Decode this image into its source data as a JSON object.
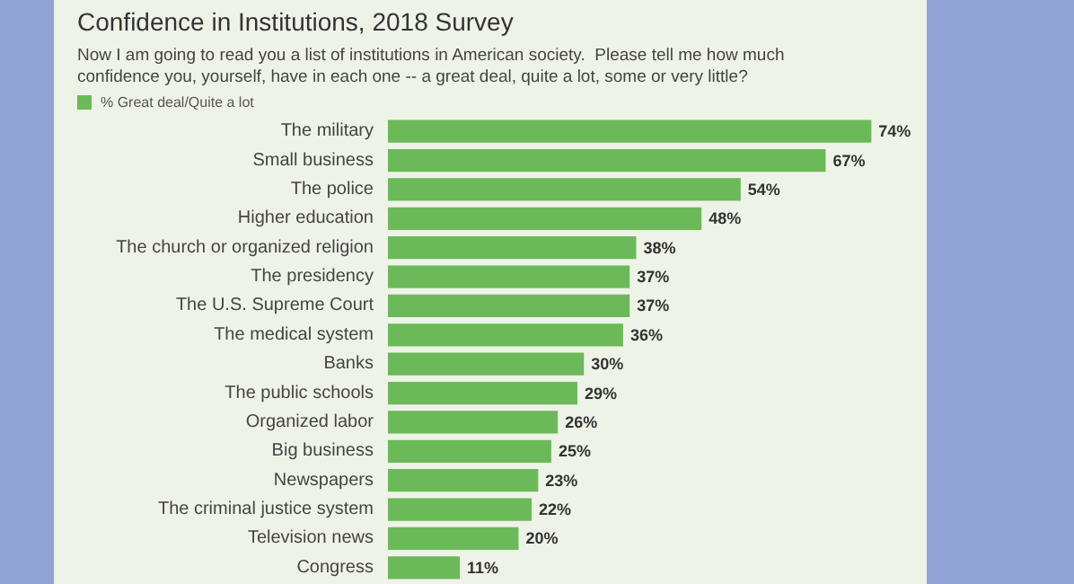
{
  "chart_data": {
    "type": "bar",
    "orientation": "horizontal",
    "title": "Confidence in Institutions, 2018 Survey",
    "subtitle": "Now I am going to read you a list of institutions in American society.  Please tell me how much\nconfidence you, yourself, have in each one -- a great deal, quite a lot, some or very little?",
    "categories": [
      "The military",
      "Small business",
      "The police",
      "Higher education",
      "The church or organized religion",
      "The presidency",
      "The U.S. Supreme Court",
      "The medical system",
      "Banks",
      "The public schools",
      "Organized labor",
      "Big business",
      "Newspapers",
      "The criminal justice system",
      "Television news",
      "Congress"
    ],
    "series": [
      {
        "name": "% Great deal/Quite a lot",
        "color": "#6cb95a",
        "values": [
          74,
          67,
          54,
          48,
          38,
          37,
          37,
          36,
          30,
          29,
          26,
          25,
          23,
          22,
          20,
          11
        ],
        "value_labels": [
          "74%",
          "67%",
          "54%",
          "48%",
          "38%",
          "37%",
          "37%",
          "36%",
          "30%",
          "29%",
          "26%",
          "25%",
          "23%",
          "22%",
          "20%",
          "11%"
        ]
      }
    ],
    "legend": "top left",
    "tick_labels": "y"
  }
}
